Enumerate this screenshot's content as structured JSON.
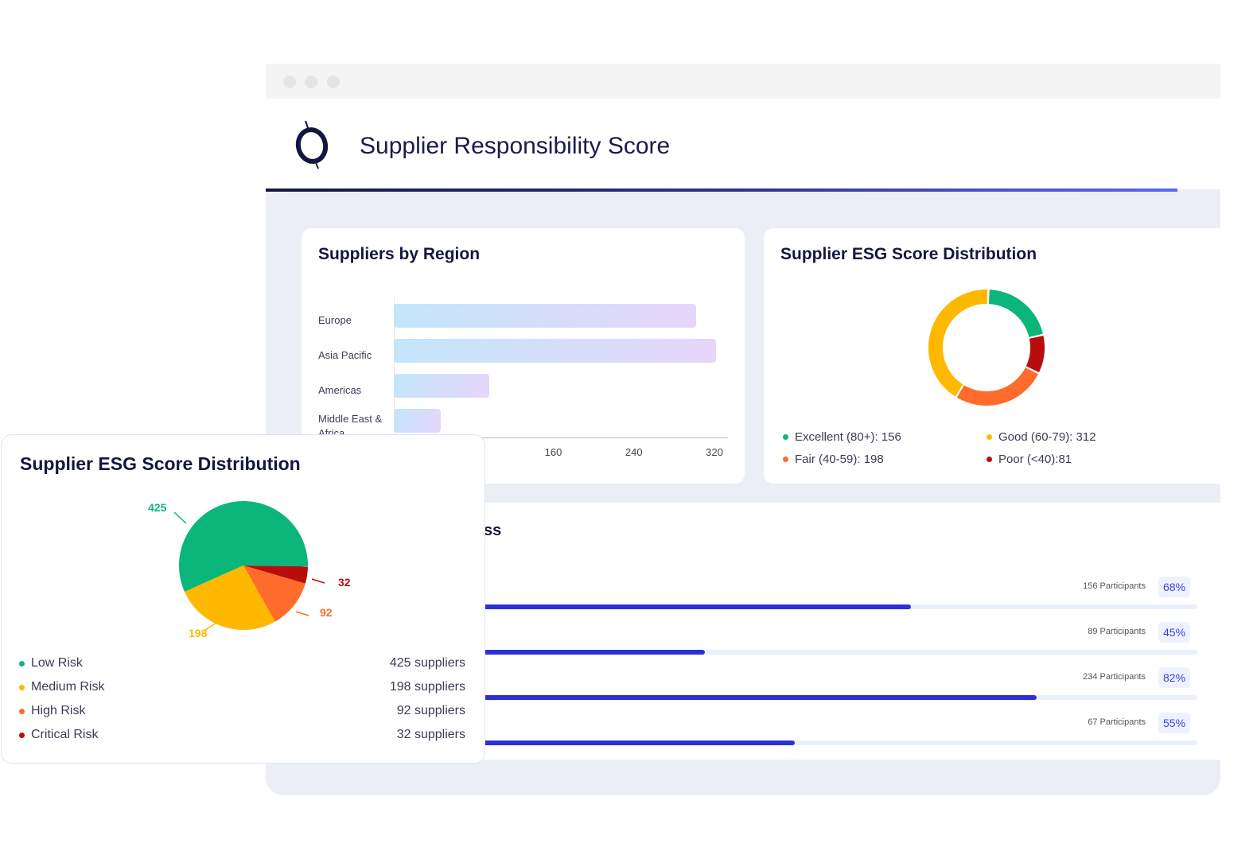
{
  "app": {
    "title": "Supplier Responsibility Score",
    "logo": "theta-logo"
  },
  "region_card": {
    "title": "Suppliers by Region",
    "chart_data": {
      "type": "bar",
      "orientation": "horizontal",
      "categories": [
        "Europe",
        "Asia Pacific",
        "Americas",
        "Middle East & Africa"
      ],
      "values": [
        300,
        320,
        95,
        47
      ],
      "xlim": [
        0,
        320
      ],
      "x_ticks": [
        "160",
        "240",
        "320"
      ]
    }
  },
  "esg_card": {
    "title": "Supplier ESG Score Distribution",
    "chart_data": {
      "type": "donut",
      "categories": [
        "Excellent (80+)",
        "Poor (<40)",
        "Fair (40-59)",
        "Good (60-79)"
      ],
      "values": [
        156,
        81,
        198,
        312
      ],
      "colors": [
        "#0bb67a",
        "#b80d0d",
        "#ff6b2a",
        "#ffb800"
      ]
    },
    "legend": [
      {
        "label": "Excellent (80+): 156",
        "color": "#0bb67a"
      },
      {
        "label": "Good (60-79): 312",
        "color": "#ffb800"
      },
      {
        "label": "Fair (40-59): 198",
        "color": "#ff6b2a"
      },
      {
        "label": "Poor (<40):81",
        "color": "#b80d0d"
      }
    ]
  },
  "progress_card": {
    "title_visible": "ss",
    "rows": [
      {
        "participants": "156 Participants",
        "percent": 68,
        "percent_label": "68%"
      },
      {
        "participants": "89 Participants",
        "percent": 45,
        "percent_label": "45%"
      },
      {
        "participants": "234 Participants",
        "percent": 82,
        "percent_label": "82%"
      },
      {
        "participants": "67 Participants",
        "percent": 55,
        "percent_label": "55%"
      }
    ]
  },
  "risk_card": {
    "title": "Supplier ESG Score Distribution",
    "chart_data": {
      "type": "pie",
      "categories": [
        "Low Risk",
        "Critical Risk",
        "High Risk",
        "Medium Risk"
      ],
      "values": [
        425,
        32,
        92,
        198
      ],
      "data_labels": [
        "425",
        "32",
        "92",
        "198"
      ],
      "colors": [
        "#0bb67a",
        "#b80d0d",
        "#ff6b2a",
        "#ffb800"
      ]
    },
    "legend": [
      {
        "label": "Low Risk",
        "value": "425 suppliers",
        "color": "#0bb67a"
      },
      {
        "label": "Medium Risk",
        "value": "198 suppliers",
        "color": "#ffb800"
      },
      {
        "label": "High Risk",
        "value": "92 suppliers",
        "color": "#ff6b2a"
      },
      {
        "label": "Critical Risk",
        "value": "32 suppliers",
        "color": "#b80d0d"
      }
    ]
  }
}
